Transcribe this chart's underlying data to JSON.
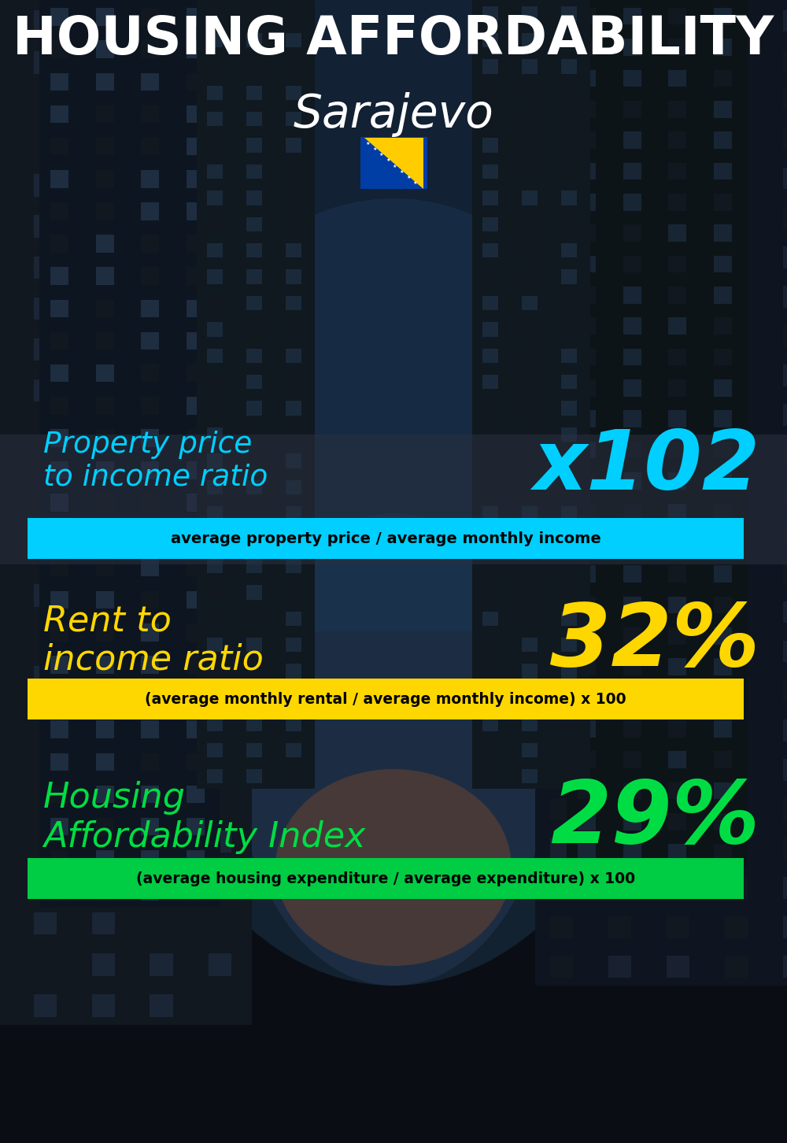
{
  "title_line1": "HOUSING AFFORDABILITY",
  "title_line2": "Sarajevo",
  "section1_label": "Property price\nto income ratio",
  "section1_value": "x102",
  "section1_label_color": "#00CFFF",
  "section1_value_color": "#00CFFF",
  "section1_banner_text": "average property price / average monthly income",
  "section1_banner_bg": "#00CFFF",
  "section1_banner_text_color": "#000000",
  "section2_label": "Rent to\nincome ratio",
  "section2_value": "32%",
  "section2_label_color": "#FFD700",
  "section2_value_color": "#FFD700",
  "section2_banner_text": "(average monthly rental / average monthly income) x 100",
  "section2_banner_bg": "#FFD700",
  "section2_banner_text_color": "#000000",
  "section3_label": "Housing\nAffordability Index",
  "section3_value": "29%",
  "section3_label_color": "#00DD44",
  "section3_value_color": "#00DD44",
  "section3_banner_text": "(average housing expenditure / average expenditure) x 100",
  "section3_banner_bg": "#00CC44",
  "section3_banner_text_color": "#000000",
  "bg_color": "#0d1117"
}
